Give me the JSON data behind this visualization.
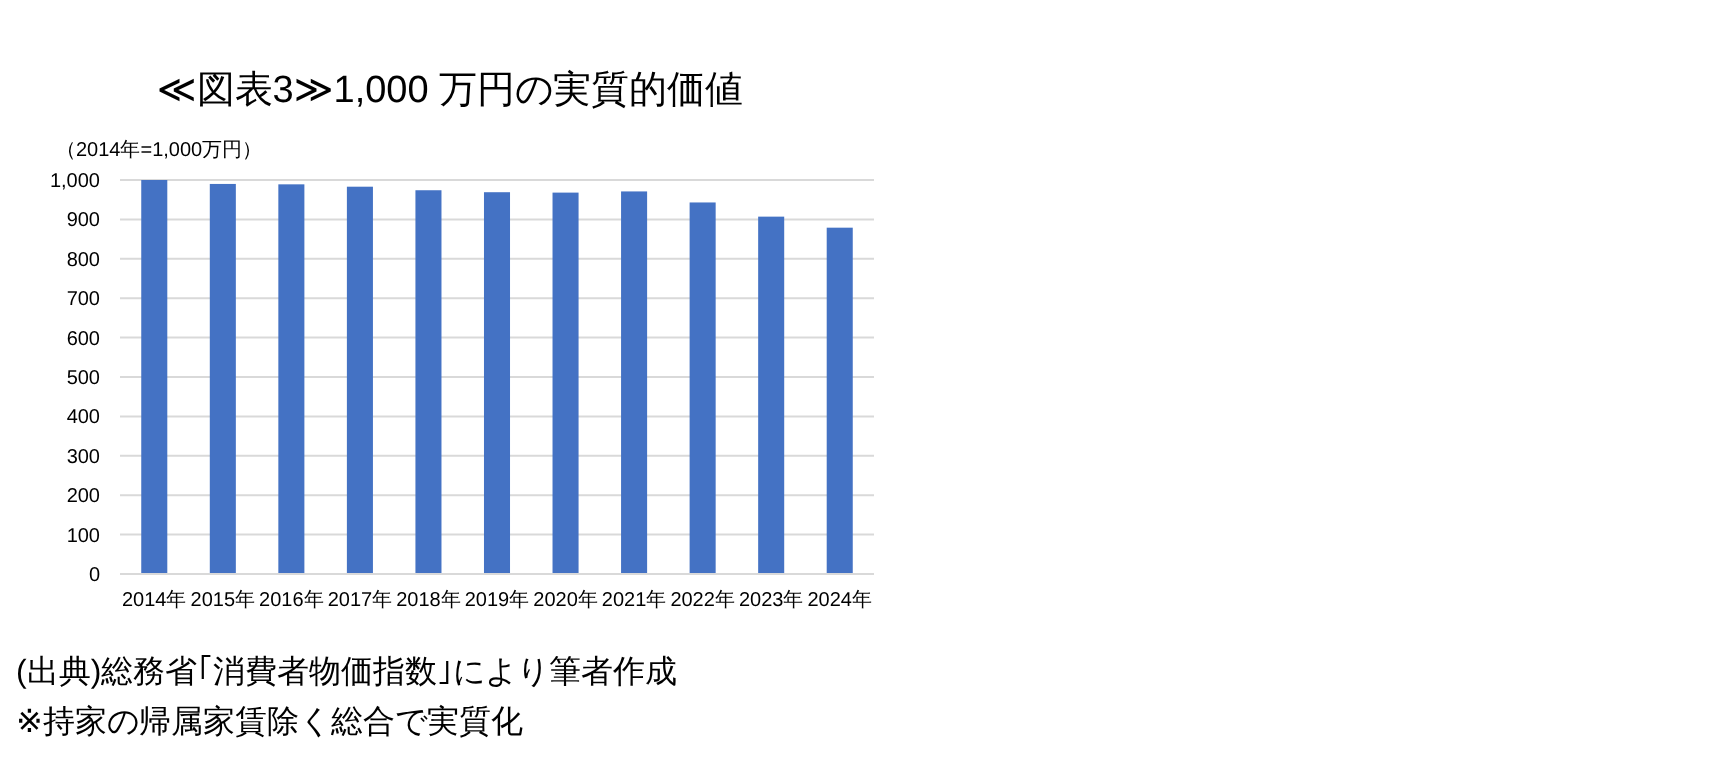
{
  "chart_data": {
    "type": "bar",
    "title": "≪図表3≫1,000 万円の実質的価値",
    "ylabel": "（2014年=1,000万円）",
    "categories": [
      "2014年",
      "2015年",
      "2016年",
      "2017年",
      "2018年",
      "2019年",
      "2020年",
      "2021年",
      "2022年",
      "2023年",
      "2024年"
    ],
    "values": [
      1000,
      990,
      989,
      983,
      974,
      969,
      968,
      971,
      943,
      907,
      879
    ],
    "color": "#4472c4",
    "ylim": [
      0,
      1000
    ],
    "yticks": [
      0,
      100,
      200,
      300,
      400,
      500,
      600,
      700,
      800,
      900,
      {
        "value": 1000,
        "label": "1,000"
      }
    ],
    "grid": "y",
    "annotations": [
      "(出典)総務省｢消費者物価指数｣により筆者作成",
      "※持家の帰属家賃除く総合で実質化"
    ]
  }
}
